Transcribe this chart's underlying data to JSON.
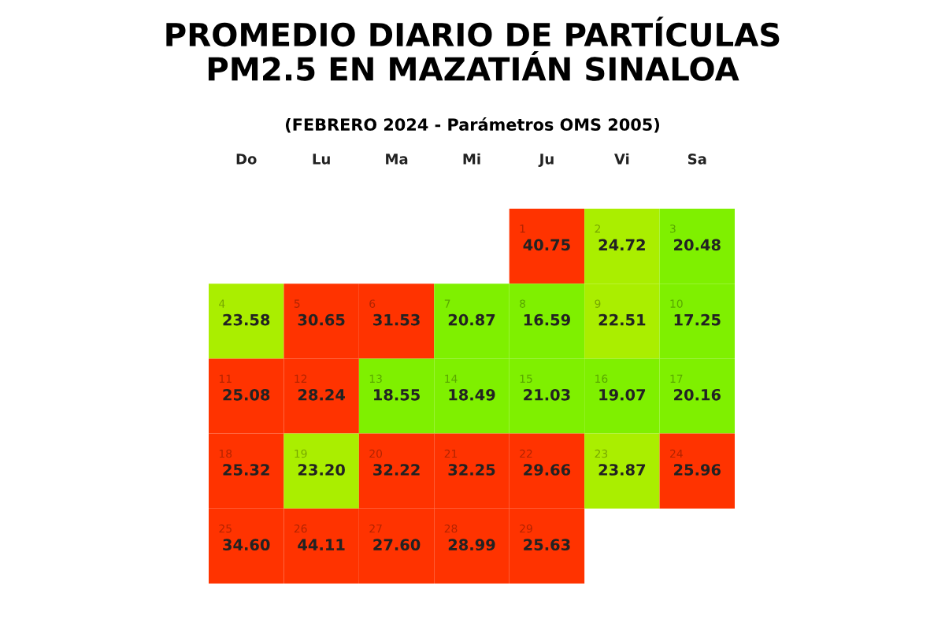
{
  "chart_data": {
    "type": "heatmap",
    "title": "PROMEDIO DIARIO DE PARTÍCULAS\nPM2.5 EN MAZATIÁN SINALOA",
    "subtitle": "(FEBRERO 2024 - Parámetros OMS 2005)",
    "categories": [
      "Do",
      "Lu",
      "Ma",
      "Mi",
      "Ju",
      "Vi",
      "Sa"
    ],
    "y_categories": [
      null,
      null,
      null,
      null,
      null
    ],
    "cells": [
      [
        null,
        null,
        null,
        null,
        40.75,
        24.72,
        20.48
      ],
      [
        23.58,
        30.65,
        31.53,
        20.87,
        16.59,
        22.51,
        17.25
      ],
      [
        25.08,
        28.24,
        18.55,
        18.49,
        21.03,
        19.07,
        20.16
      ],
      [
        25.32,
        23.2,
        32.22,
        32.25,
        29.66,
        23.87,
        25.96
      ],
      [
        34.6,
        44.11,
        27.6,
        28.99,
        25.63,
        null,
        null
      ]
    ],
    "cell_labels": [
      [
        null,
        null,
        null,
        null,
        "40.75",
        "24.72",
        "20.48"
      ],
      [
        "23.58",
        "30.65",
        "31.53",
        "20.87",
        "16.59",
        "22.51",
        "17.25"
      ],
      [
        "25.08",
        "28.24",
        "18.55",
        "18.49",
        "21.03",
        "19.07",
        "20.16"
      ],
      [
        "25.32",
        "23.20",
        "32.22",
        "32.25",
        "29.66",
        "23.87",
        "25.96"
      ],
      [
        "34.60",
        "44.11",
        "27.60",
        "28.99",
        "25.63",
        null,
        null
      ]
    ],
    "annotations": [
      "1",
      "2",
      "3",
      "4",
      "5",
      "6",
      "7",
      "8",
      "9",
      "10",
      "11",
      "12",
      "13",
      "14",
      "15",
      "16",
      "17",
      "18",
      "19",
      "20",
      "21",
      "22",
      "23",
      "24",
      "25",
      "26",
      "27",
      "28",
      "29"
    ],
    "data_labels": true,
    "colors": [
      [
        null,
        null,
        null,
        null,
        "#ff3300",
        "#aaee00",
        "#7ff000"
      ],
      [
        "#aaee00",
        "#ff3300",
        "#ff3300",
        "#7ff000",
        "#7ff000",
        "#aaee00",
        "#7ff000"
      ],
      [
        "#ff3300",
        "#ff3300",
        "#7ff000",
        "#7ff000",
        "#7ff000",
        "#7ff000",
        "#7ff000"
      ],
      [
        "#ff3300",
        "#aaee00",
        "#ff3300",
        "#ff3300",
        "#ff3300",
        "#aaee00",
        "#ff3300"
      ],
      [
        "#ff3300",
        "#ff3300",
        "#ff3300",
        "#ff3300",
        "#ff3300",
        null,
        null
      ]
    ]
  }
}
